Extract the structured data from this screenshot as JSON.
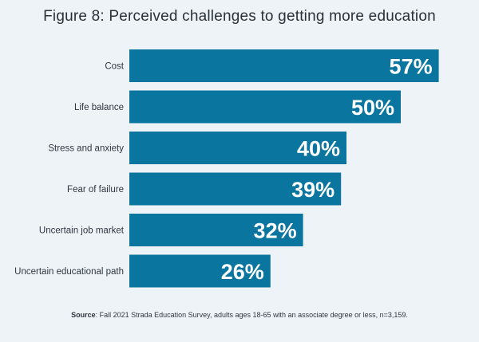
{
  "chart_data": {
    "type": "bar",
    "orientation": "horizontal",
    "title": "Figure 8: Perceived challenges to getting more education",
    "categories": [
      "Cost",
      "Life balance",
      "Stress and anxiety",
      "Fear of failure",
      "Uncertain job market",
      "Uncertain educational path"
    ],
    "values": [
      57,
      50,
      40,
      39,
      32,
      26
    ],
    "value_labels": [
      "57%",
      "50%",
      "40%",
      "39%",
      "32%",
      "26%"
    ],
    "xlim": [
      0,
      100
    ],
    "xlabel": "",
    "ylabel": "",
    "grid": false,
    "bar_color": "#0a76a0",
    "source_label": "Source",
    "source_text": ": Fall 2021 Strada Education Survey, adults ages 18-65 with an associate degree or less, n=3,159."
  }
}
